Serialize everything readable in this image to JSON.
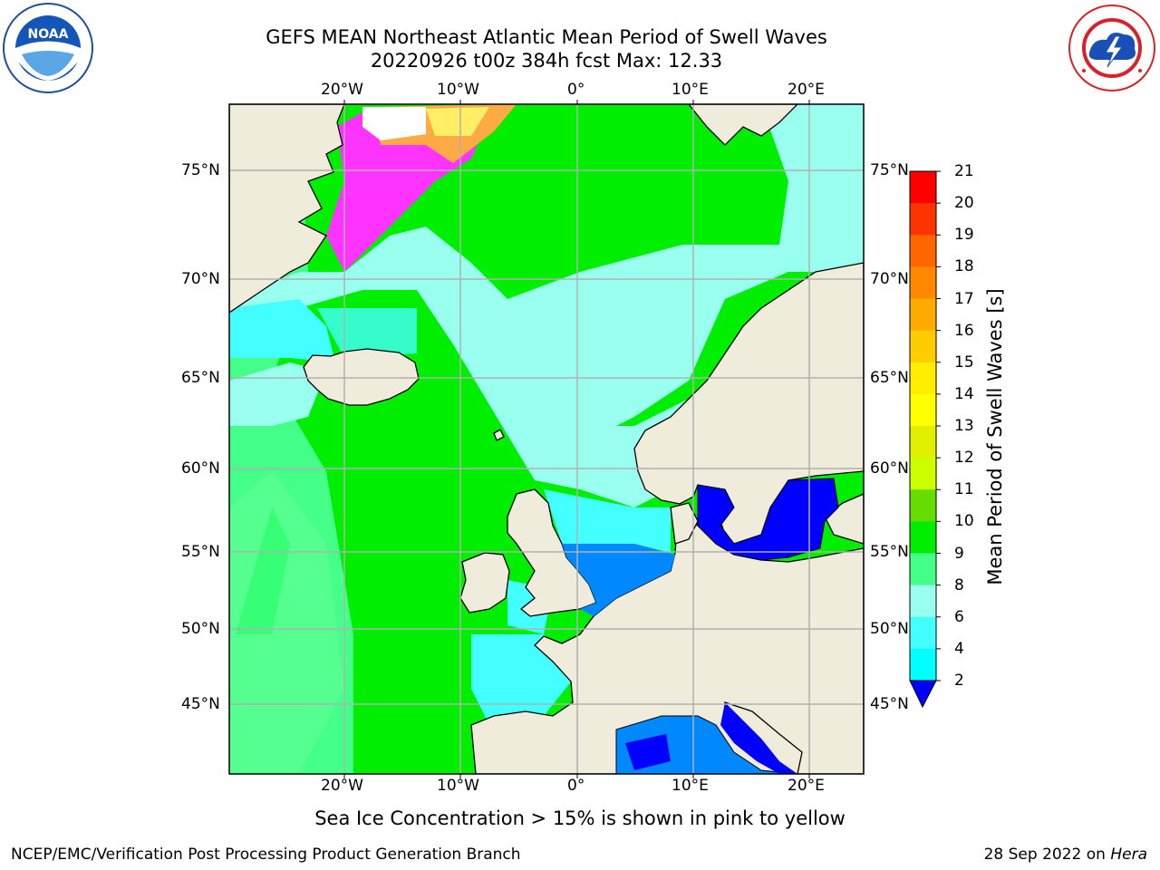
{
  "header": {
    "title_line1": "GEFS MEAN Northeast Atlantic Mean Period of Swell Waves",
    "title_line2": "20220926 t00z 384h fcst   Max: 12.33"
  },
  "map": {
    "lon_ticks": [
      "20°W",
      "10°W",
      "0°",
      "10°E",
      "20°E"
    ],
    "lat_ticks": [
      "75°N",
      "70°N",
      "65°N",
      "60°N",
      "55°N",
      "50°N",
      "45°N"
    ],
    "colors": {
      "land": "#efecdc",
      "ice_pink": "#ff33ff",
      "ice_orange": "#ffaa44",
      "ice_yellow": "#ffee66",
      "grid": "#b0b0b0"
    }
  },
  "colorbar": {
    "label": "Mean Period of Swell Waves [s]",
    "ticks": [
      "21",
      "20",
      "19",
      "18",
      "17",
      "16",
      "15",
      "14",
      "13",
      "12",
      "11",
      "10",
      "9",
      "8",
      "6",
      "4",
      "2"
    ],
    "colors": [
      "#ff0000",
      "#ff3300",
      "#ff6600",
      "#ff8800",
      "#ffaa00",
      "#ffcc00",
      "#ffee00",
      "#ffff00",
      "#e0f000",
      "#ccff00",
      "#66dd00",
      "#00ee00",
      "#44ff88",
      "#99ffee",
      "#44ffff",
      "#00ffff",
      "#0088ff"
    ],
    "extend_color": "#0000ff"
  },
  "note": "Sea Ice Concentration > 15% is shown in pink to yellow",
  "footer": {
    "left": "NCEP/EMC/Verification Post Processing Product Generation Branch",
    "right_date": "28 Sep 2022 on ",
    "right_machine": "Hera"
  }
}
